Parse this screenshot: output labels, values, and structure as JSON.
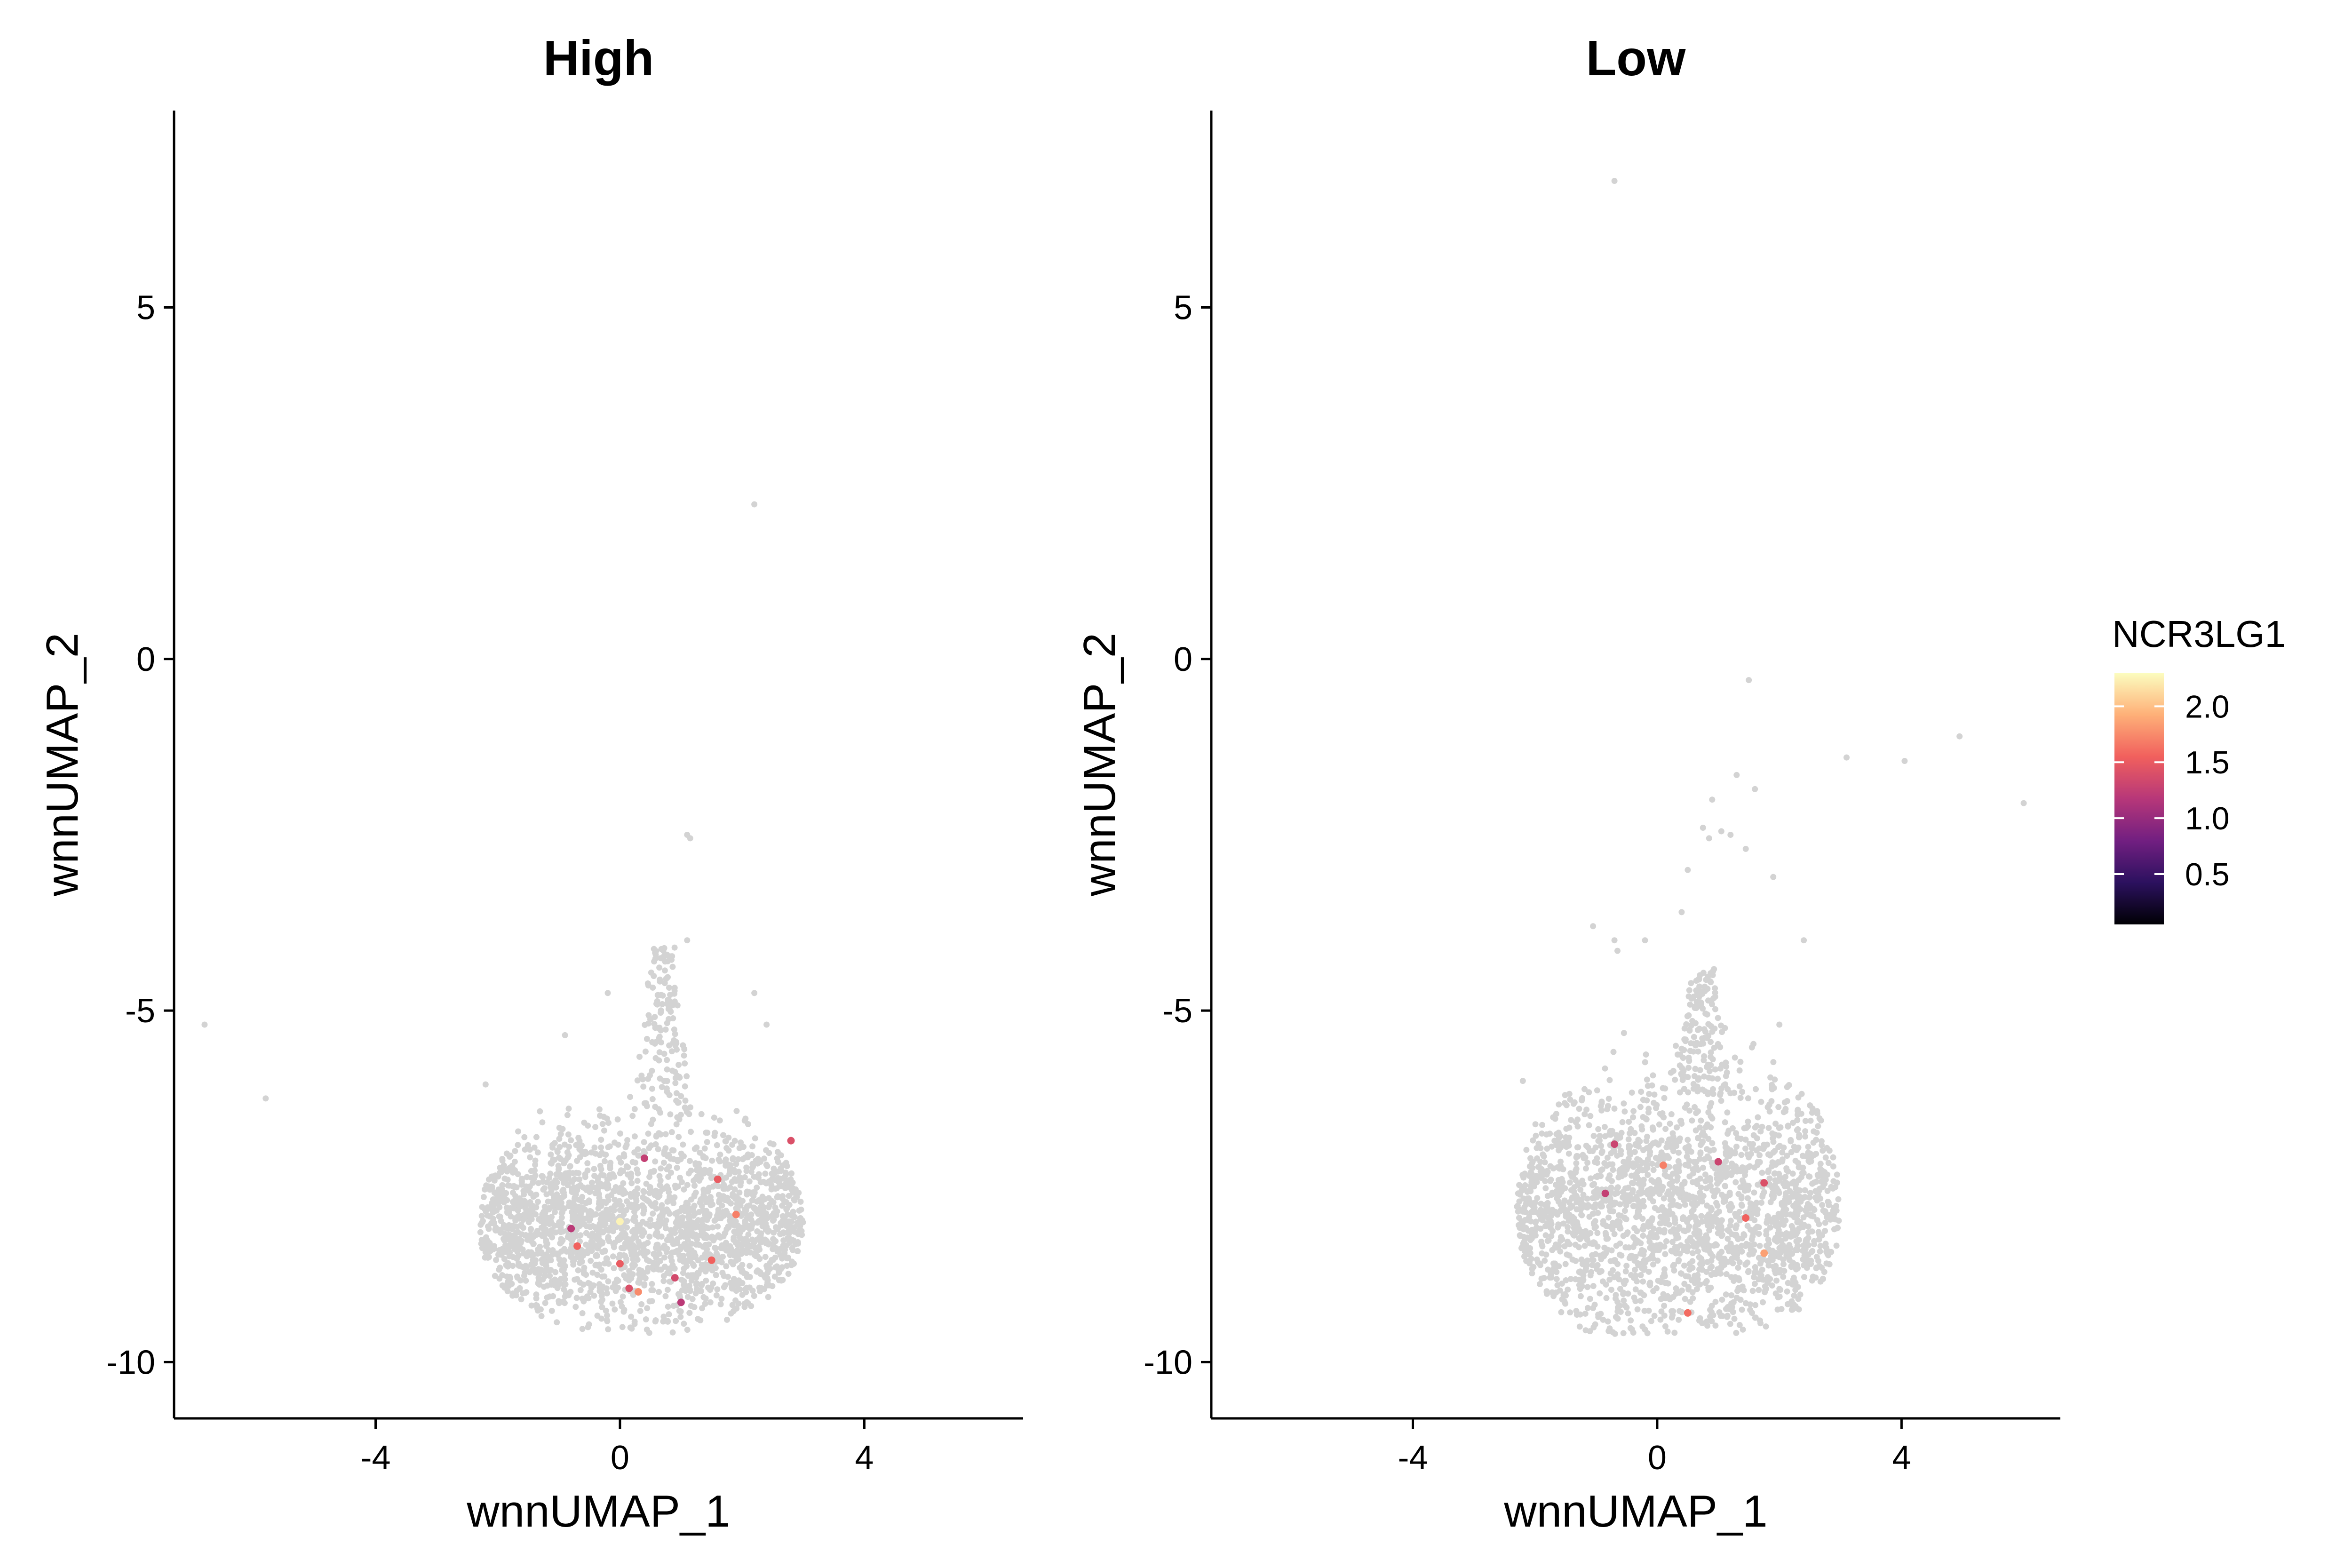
{
  "figure": {
    "colorbar": {
      "title": "NCR3LG1",
      "ticks": [
        0.5,
        1.0,
        1.5,
        2.0
      ],
      "tick_labels": [
        "0.5",
        "1.0",
        "1.5",
        "2.0"
      ],
      "range": [
        0.05,
        2.3
      ],
      "gradient": [
        "#000004",
        "#2c115f",
        "#721f81",
        "#b73779",
        "#f1605d",
        "#feb078",
        "#fcfdbf"
      ]
    }
  },
  "chart_data": [
    {
      "type": "scatter",
      "title": "High",
      "xlabel": "wnnUMAP_1",
      "ylabel": "wnnUMAP_2",
      "xlim": [
        -7.3,
        6.6
      ],
      "ylim": [
        -10.8,
        7.8
      ],
      "x_ticks": [
        -4,
        0,
        4
      ],
      "x_tick_labels": [
        "-4",
        "0",
        "4"
      ],
      "y_ticks": [
        5,
        0,
        -5,
        -10
      ],
      "y_tick_labels": [
        "5",
        "0",
        "-5",
        "-10"
      ],
      "grid": false,
      "background_color": "#d3d3d3",
      "background_cluster": {
        "approx_points": 2200,
        "x_range": [
          -2.3,
          3.0
        ],
        "y_range": [
          -9.6,
          -6.2
        ],
        "center": [
          0.4,
          -8.1
        ],
        "upper_plume": {
          "x_range": [
            0.2,
            1.2
          ],
          "y_range": [
            -6.5,
            -4.1
          ]
        }
      },
      "outliers": [
        {
          "x": -6.8,
          "y": -5.2
        },
        {
          "x": -5.8,
          "y": -6.25
        },
        {
          "x": 2.2,
          "y": 2.2
        },
        {
          "x": 1.1,
          "y": -2.5
        },
        {
          "x": 1.15,
          "y": -2.55
        },
        {
          "x": 1.1,
          "y": -4.0
        },
        {
          "x": 2.2,
          "y": -4.75
        },
        {
          "x": 2.4,
          "y": -5.2
        },
        {
          "x": -0.2,
          "y": -4.75
        },
        {
          "x": -0.9,
          "y": -5.35
        },
        {
          "x": -2.2,
          "y": -6.05
        }
      ],
      "expressing_cells": [
        {
          "x": 0.0,
          "y": -8.0,
          "value": 2.25
        },
        {
          "x": 0.4,
          "y": -7.1,
          "value": 1.25
        },
        {
          "x": 1.6,
          "y": -7.4,
          "value": 1.5
        },
        {
          "x": 2.8,
          "y": -6.85,
          "value": 1.4
        },
        {
          "x": 1.9,
          "y": -7.9,
          "value": 1.7
        },
        {
          "x": -0.8,
          "y": -8.1,
          "value": 1.2
        },
        {
          "x": -0.7,
          "y": -8.35,
          "value": 1.55
        },
        {
          "x": 0.0,
          "y": -8.6,
          "value": 1.5
        },
        {
          "x": 1.5,
          "y": -8.55,
          "value": 1.55
        },
        {
          "x": 0.9,
          "y": -8.8,
          "value": 1.35
        },
        {
          "x": 0.15,
          "y": -8.95,
          "value": 1.4
        },
        {
          "x": 0.3,
          "y": -9.0,
          "value": 1.75
        },
        {
          "x": 1.0,
          "y": -9.15,
          "value": 1.2
        }
      ]
    },
    {
      "type": "scatter",
      "title": "Low",
      "xlabel": "wnnUMAP_1",
      "ylabel": "wnnUMAP_2",
      "xlim": [
        -7.3,
        6.6
      ],
      "ylim": [
        -10.8,
        7.8
      ],
      "x_ticks": [
        -4,
        0,
        4
      ],
      "x_tick_labels": [
        "-4",
        "0",
        "4"
      ],
      "y_ticks": [
        5,
        0,
        -5,
        -10
      ],
      "y_tick_labels": [
        "5",
        "0",
        "-5",
        "-10"
      ],
      "grid": false,
      "background_color": "#d3d3d3",
      "background_cluster": {
        "approx_points": 2200,
        "x_range": [
          -2.3,
          3.0
        ],
        "y_range": [
          -9.6,
          -5.2
        ],
        "center": [
          0.4,
          -7.9
        ],
        "upper_plume": {
          "x_range": [
            0.3,
            1.2
          ],
          "y_range": [
            -6.2,
            -4.4
          ]
        }
      },
      "outliers": [
        {
          "x": -0.7,
          "y": 6.8
        },
        {
          "x": 1.5,
          "y": -0.3
        },
        {
          "x": 3.1,
          "y": -1.4
        },
        {
          "x": 4.05,
          "y": -1.45
        },
        {
          "x": 4.95,
          "y": -1.1
        },
        {
          "x": 6.0,
          "y": -2.05
        },
        {
          "x": 1.3,
          "y": -1.65
        },
        {
          "x": 1.6,
          "y": -1.85
        },
        {
          "x": 0.9,
          "y": -2.0
        },
        {
          "x": 0.75,
          "y": -2.4
        },
        {
          "x": 0.85,
          "y": -2.55
        },
        {
          "x": 1.05,
          "y": -2.45
        },
        {
          "x": 1.2,
          "y": -2.5
        },
        {
          "x": 1.45,
          "y": -2.7
        },
        {
          "x": 1.9,
          "y": -3.1
        },
        {
          "x": 0.5,
          "y": -3.0
        },
        {
          "x": 0.4,
          "y": -3.6
        },
        {
          "x": -1.05,
          "y": -3.8
        },
        {
          "x": -0.7,
          "y": -4.0
        },
        {
          "x": -0.65,
          "y": -4.15
        },
        {
          "x": -0.2,
          "y": -4.0
        },
        {
          "x": 2.4,
          "y": -4.0
        },
        {
          "x": 2.0,
          "y": -5.2
        },
        {
          "x": -2.2,
          "y": -6.0
        }
      ],
      "expressing_cells": [
        {
          "x": -0.7,
          "y": -6.9,
          "value": 1.3
        },
        {
          "x": 0.1,
          "y": -7.2,
          "value": 1.7
        },
        {
          "x": 1.0,
          "y": -7.15,
          "value": 1.3
        },
        {
          "x": 1.75,
          "y": -7.45,
          "value": 1.4
        },
        {
          "x": -0.85,
          "y": -7.6,
          "value": 1.25
        },
        {
          "x": 1.45,
          "y": -7.95,
          "value": 1.55
        },
        {
          "x": 1.75,
          "y": -8.45,
          "value": 1.85
        },
        {
          "x": 0.5,
          "y": -9.3,
          "value": 1.6
        }
      ]
    }
  ]
}
